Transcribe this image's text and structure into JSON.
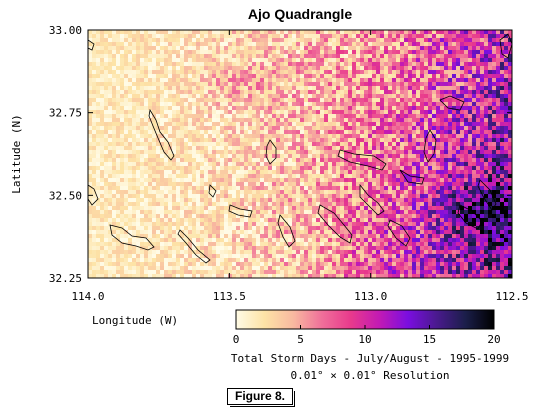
{
  "chart_data": {
    "type": "heatmap",
    "title": "Ajo Quadrangle",
    "xlabel": "Longitude (W)",
    "ylabel": "Latitude (N)",
    "xlim": [
      114.0,
      112.5
    ],
    "ylim": [
      32.25,
      33.0
    ],
    "x_ticks": [
      "114.0",
      "113.5",
      "113.0",
      "112.5"
    ],
    "y_ticks": [
      "32.25",
      "32.50",
      "32.75",
      "33.00"
    ],
    "grid_resolution_deg": 0.01,
    "colorbar": {
      "min": 0,
      "max": 20,
      "ticks": [
        "0",
        "5",
        "10",
        "15",
        "20"
      ],
      "label": "Total Storm Days - July/August - 1995-1999",
      "sublabel": "0.01° × 0.01° Resolution",
      "colors": [
        "#fffbe6",
        "#fde3a6",
        "#f8b9a0",
        "#f06f9a",
        "#e83a8c",
        "#c21ab4",
        "#7a0ee0",
        "#4a1a8e",
        "#1b1e4a",
        "#000000"
      ]
    },
    "intensity_trend": "storm days increase from west (~2) to east (~12-15), highest near 112.6W 32.45N"
  },
  "figure_label": "Figure 8."
}
